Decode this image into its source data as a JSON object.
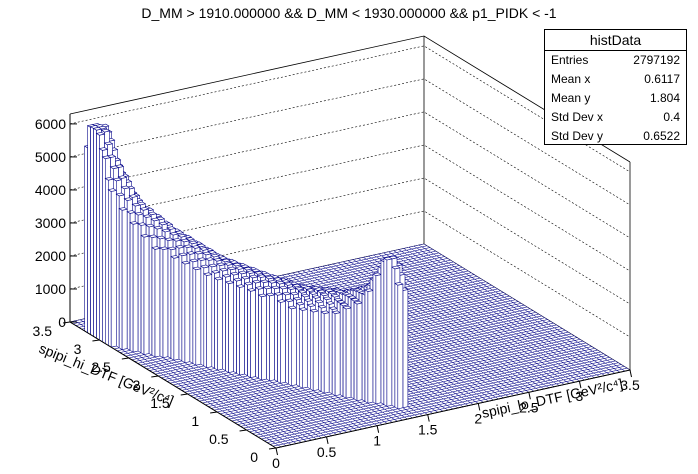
{
  "title": "D_MM > 1910.000000 && D_MM < 1930.000000 && p1_PIDK < -1",
  "stats_box": {
    "name": "histData",
    "rows": [
      {
        "label": "Entries",
        "value": "2797192"
      },
      {
        "label": "Mean x",
        "value": "0.6117"
      },
      {
        "label": "Mean y",
        "value": "1.804"
      },
      {
        "label": "Std Dev x",
        "value": "0.4"
      },
      {
        "label": "Std Dev y",
        "value": "0.6522"
      }
    ]
  },
  "colors": {
    "bar_line": "#0a0a8c",
    "bar_fill": "#ffffff",
    "axis": "#000000",
    "grid": "#000000"
  },
  "chart_data": {
    "type": "lego",
    "xlabel": "spipi_lo_DTF [GeV²/c⁴]",
    "ylabel": "spipi_hi_DTF [GeV²/c⁴]",
    "zlabel": "",
    "xlim": [
      0,
      3.5
    ],
    "ylim": [
      0,
      3.5
    ],
    "zlim": [
      0,
      6300
    ],
    "x_ticks": [
      "0",
      "0.5",
      "1",
      "1.5",
      "2",
      "2.5",
      "3",
      "3.5"
    ],
    "y_ticks": [
      "0",
      "0.5",
      "1",
      "1.5",
      "2",
      "2.5",
      "3",
      "3.5"
    ],
    "z_ticks": [
      "0",
      "1000",
      "2000",
      "3000",
      "4000",
      "5000",
      "6000"
    ],
    "bins_x": 70,
    "bins_y": 70,
    "grid": true,
    "surface_profile": [
      {
        "x_gev2": 0.05,
        "y_gev2": 3.1,
        "count": 5700
      },
      {
        "x_gev2": 0.1,
        "y_gev2": 2.9,
        "count": 4300
      },
      {
        "x_gev2": 0.2,
        "y_gev2": 2.7,
        "count": 3300
      },
      {
        "x_gev2": 0.4,
        "y_gev2": 2.4,
        "count": 2600
      },
      {
        "x_gev2": 0.6,
        "y_gev2": 2.0,
        "count": 2100
      },
      {
        "x_gev2": 0.8,
        "y_gev2": 1.6,
        "count": 1900
      },
      {
        "x_gev2": 1.0,
        "y_gev2": 1.3,
        "count": 1700
      },
      {
        "x_gev2": 1.2,
        "y_gev2": 0.9,
        "count": 1850
      },
      {
        "x_gev2": 1.3,
        "y_gev2": 0.6,
        "count": 2300
      },
      {
        "x_gev2": 1.35,
        "y_gev2": 0.4,
        "count": 3400
      }
    ]
  }
}
